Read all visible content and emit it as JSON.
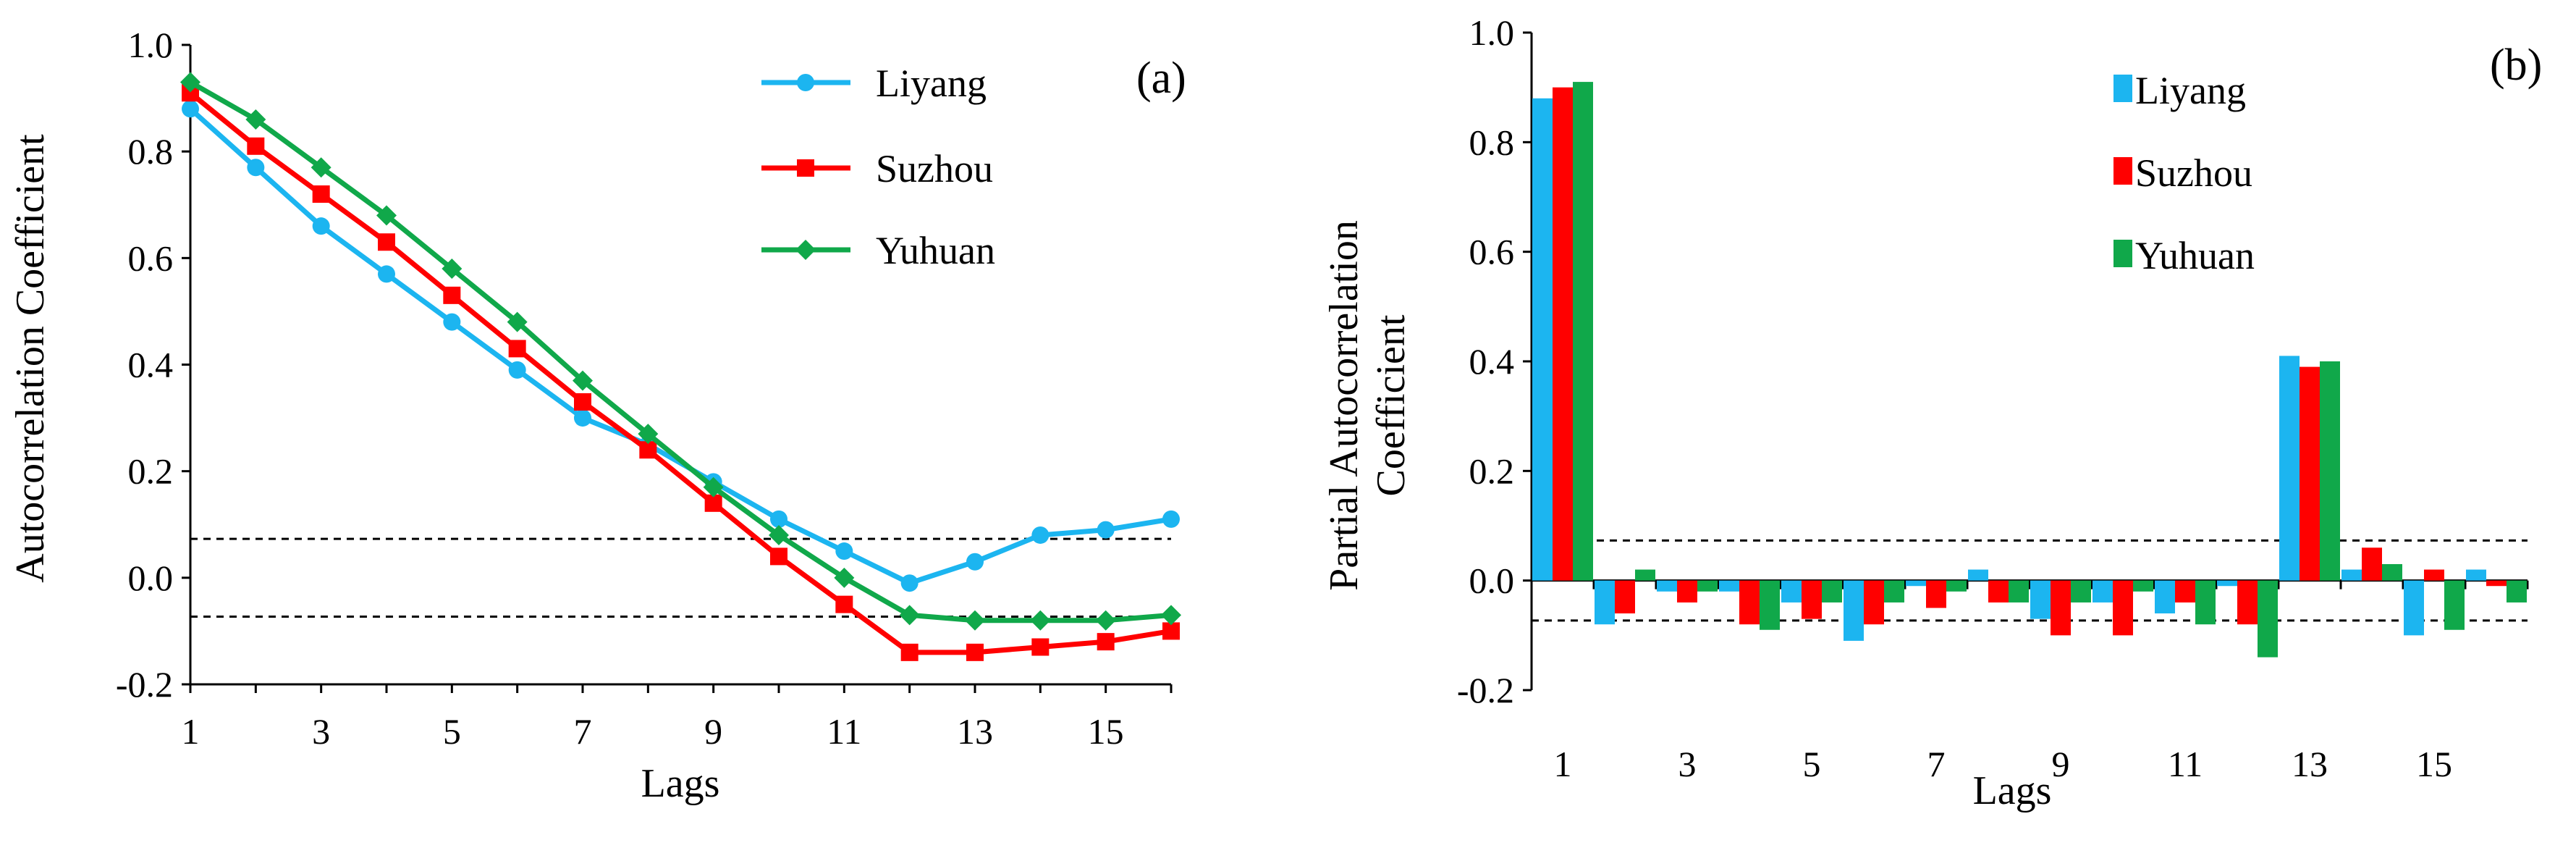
{
  "colors": {
    "liyang": "#1CB5F0",
    "suzhou": "#FF0000",
    "yuhuan": "#10A84A",
    "axis": "#000000",
    "background": "#FFFFFF"
  },
  "chart_data": [
    {
      "type": "line",
      "panel_label": "(a)",
      "title": "",
      "xlabel": "Lags",
      "ylabel": "Autocorrelation Coefficient",
      "xlim": [
        1,
        16
      ],
      "ylim": [
        -0.2,
        1.0
      ],
      "x": [
        1,
        2,
        3,
        4,
        5,
        6,
        7,
        8,
        9,
        10,
        11,
        12,
        13,
        14,
        15,
        16
      ],
      "xticks": [
        1,
        3,
        5,
        7,
        9,
        11,
        13,
        15
      ],
      "yticks": [
        -0.2,
        0.0,
        0.2,
        0.4,
        0.6,
        0.8,
        1.0
      ],
      "ytick_labels": [
        "-0.2",
        "0.0",
        "0.2",
        "0.4",
        "0.6",
        "0.8",
        "1.0"
      ],
      "confidence_bounds": [
        0.073,
        -0.073
      ],
      "legend_position": "top-right",
      "series": [
        {
          "name": "Liyang",
          "color_key": "liyang",
          "marker": "circle",
          "values": [
            0.88,
            0.77,
            0.66,
            0.57,
            0.48,
            0.39,
            0.3,
            0.25,
            0.18,
            0.11,
            0.05,
            -0.01,
            0.03,
            0.08,
            0.09,
            0.11
          ]
        },
        {
          "name": "Suzhou",
          "color_key": "suzhou",
          "marker": "square",
          "values": [
            0.91,
            0.81,
            0.72,
            0.63,
            0.53,
            0.43,
            0.33,
            0.24,
            0.14,
            0.04,
            -0.05,
            -0.14,
            -0.14,
            -0.13,
            -0.12,
            -0.1
          ]
        },
        {
          "name": "Yuhuan",
          "color_key": "yuhuan",
          "marker": "diamond",
          "values": [
            0.93,
            0.86,
            0.77,
            0.68,
            0.58,
            0.48,
            0.37,
            0.27,
            0.17,
            0.08,
            0.0,
            -0.07,
            -0.08,
            -0.08,
            -0.08,
            -0.07
          ]
        }
      ]
    },
    {
      "type": "bar",
      "panel_label": "(b)",
      "title": "",
      "xlabel": "Lags",
      "ylabel_lines": [
        "Partial Autocorrelation",
        "Coefficient"
      ],
      "xlim": [
        1,
        16
      ],
      "ylim": [
        -0.2,
        1.0
      ],
      "categories": [
        1,
        2,
        3,
        4,
        5,
        6,
        7,
        8,
        9,
        10,
        11,
        12,
        13,
        14,
        15,
        16
      ],
      "xticks": [
        1,
        3,
        5,
        7,
        9,
        11,
        13,
        15
      ],
      "yticks": [
        -0.2,
        0.0,
        0.2,
        0.4,
        0.6,
        0.8,
        1.0
      ],
      "ytick_labels": [
        "-0.2",
        "0.0",
        "0.2",
        "0.4",
        "0.6",
        "0.8",
        "1.0"
      ],
      "confidence_bounds": [
        0.073,
        -0.073
      ],
      "legend_position": "top-right",
      "series": [
        {
          "name": "Liyang",
          "color_key": "liyang",
          "values": [
            0.88,
            -0.08,
            -0.02,
            -0.02,
            -0.04,
            -0.11,
            -0.01,
            0.02,
            -0.07,
            -0.04,
            -0.06,
            -0.01,
            0.41,
            0.02,
            -0.1,
            0.02
          ]
        },
        {
          "name": "Suzhou",
          "color_key": "suzhou",
          "values": [
            0.9,
            -0.06,
            -0.04,
            -0.08,
            -0.07,
            -0.08,
            -0.05,
            -0.04,
            -0.1,
            -0.1,
            -0.04,
            -0.08,
            0.39,
            0.06,
            0.02,
            -0.01
          ]
        },
        {
          "name": "Yuhuan",
          "color_key": "yuhuan",
          "values": [
            0.91,
            0.02,
            -0.02,
            -0.09,
            -0.04,
            -0.04,
            -0.02,
            -0.04,
            -0.04,
            -0.02,
            -0.08,
            -0.14,
            0.4,
            0.03,
            -0.09,
            -0.04
          ]
        }
      ]
    }
  ]
}
